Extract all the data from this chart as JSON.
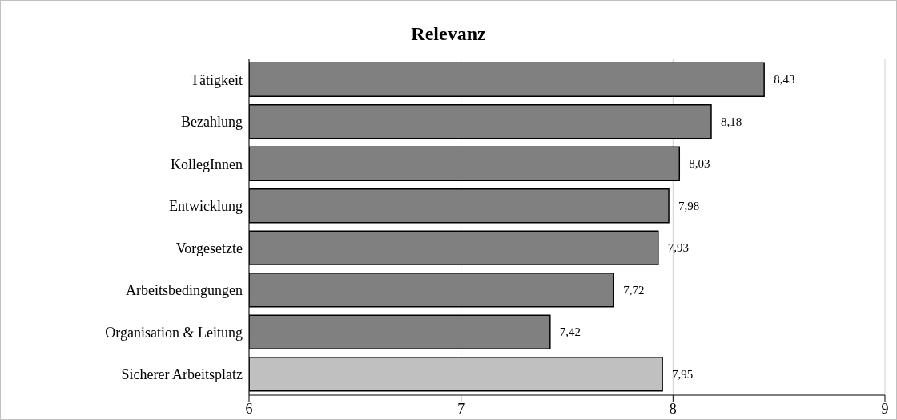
{
  "chart_data": {
    "type": "bar",
    "orientation": "horizontal",
    "title": "Relevanz",
    "categories": [
      "Tätigkeit",
      "Bezahlung",
      "KollegInnen",
      "Entwicklung",
      "Vorgesetzte",
      "Arbeitsbedingungen",
      "Organisation & Leitung",
      "Sicherer Arbeitsplatz"
    ],
    "values": [
      8.43,
      8.18,
      8.03,
      7.98,
      7.93,
      7.72,
      7.42,
      7.95
    ],
    "value_labels": [
      "8,43",
      "8,18",
      "8,03",
      "7,98",
      "7,93",
      "7,72",
      "7,42",
      "7,95"
    ],
    "colors": [
      "#808080",
      "#808080",
      "#808080",
      "#808080",
      "#808080",
      "#808080",
      "#808080",
      "#c0c0c0"
    ],
    "xlim": [
      6,
      9
    ],
    "xticks": [
      6,
      7,
      8,
      9
    ],
    "grid": "x"
  }
}
